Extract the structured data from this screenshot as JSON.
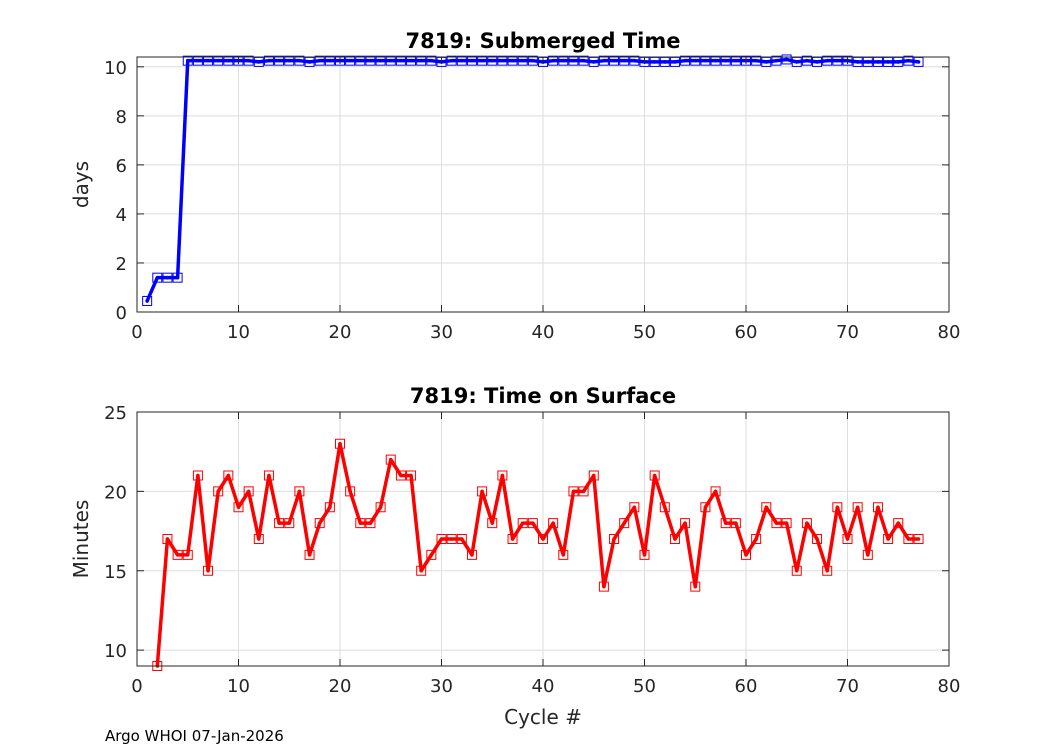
{
  "footer": "Argo WHOI 07-Jan-2026",
  "chart_data": [
    {
      "type": "line",
      "title": "7819: Submerged Time",
      "xlabel": "",
      "ylabel": "days",
      "xlim": [
        0,
        80
      ],
      "ylim": [
        0,
        10.4
      ],
      "xticks": [
        0,
        10,
        20,
        30,
        40,
        50,
        60,
        70,
        80
      ],
      "yticks": [
        0,
        2,
        4,
        6,
        8,
        10
      ],
      "grid": true,
      "color": "#0000ff",
      "marker": "square",
      "series": [
        {
          "name": "Submerged Time",
          "x": [
            1,
            2,
            3,
            4,
            5,
            6,
            7,
            8,
            9,
            10,
            11,
            12,
            13,
            14,
            15,
            16,
            17,
            18,
            19,
            20,
            21,
            22,
            23,
            24,
            25,
            26,
            27,
            28,
            29,
            30,
            31,
            32,
            33,
            34,
            35,
            36,
            37,
            38,
            39,
            40,
            41,
            42,
            43,
            44,
            45,
            46,
            47,
            48,
            49,
            50,
            51,
            52,
            53,
            54,
            55,
            56,
            57,
            58,
            59,
            60,
            61,
            62,
            63,
            64,
            65,
            66,
            67,
            68,
            69,
            70,
            71,
            72,
            73,
            74,
            75,
            76,
            77
          ],
          "y": [
            0.45,
            1.4,
            1.4,
            1.4,
            10.25,
            10.25,
            10.25,
            10.25,
            10.25,
            10.25,
            10.25,
            10.2,
            10.25,
            10.25,
            10.25,
            10.25,
            10.2,
            10.25,
            10.25,
            10.25,
            10.25,
            10.25,
            10.25,
            10.25,
            10.25,
            10.25,
            10.25,
            10.25,
            10.25,
            10.2,
            10.25,
            10.25,
            10.25,
            10.25,
            10.25,
            10.25,
            10.25,
            10.25,
            10.25,
            10.2,
            10.25,
            10.25,
            10.25,
            10.25,
            10.2,
            10.25,
            10.25,
            10.25,
            10.25,
            10.2,
            10.2,
            10.2,
            10.2,
            10.25,
            10.25,
            10.25,
            10.25,
            10.25,
            10.25,
            10.25,
            10.25,
            10.2,
            10.25,
            10.3,
            10.2,
            10.25,
            10.2,
            10.25,
            10.25,
            10.25,
            10.2,
            10.2,
            10.2,
            10.2,
            10.2,
            10.25,
            10.2
          ]
        }
      ]
    },
    {
      "type": "line",
      "title": "7819: Time on Surface",
      "xlabel": "Cycle #",
      "ylabel": "Minutes",
      "xlim": [
        0,
        80
      ],
      "ylim": [
        9,
        25
      ],
      "xticks": [
        0,
        10,
        20,
        30,
        40,
        50,
        60,
        70,
        80
      ],
      "yticks": [
        10,
        15,
        20,
        25
      ],
      "grid": true,
      "color": "#ff0000",
      "marker": "square",
      "series": [
        {
          "name": "Time on Surface",
          "x": [
            2,
            3,
            4,
            5,
            6,
            7,
            8,
            9,
            10,
            11,
            12,
            13,
            14,
            15,
            16,
            17,
            18,
            19,
            20,
            21,
            22,
            23,
            24,
            25,
            26,
            27,
            28,
            29,
            30,
            31,
            32,
            33,
            34,
            35,
            36,
            37,
            38,
            39,
            40,
            41,
            42,
            43,
            44,
            45,
            46,
            47,
            48,
            49,
            50,
            51,
            52,
            53,
            54,
            55,
            56,
            57,
            58,
            59,
            60,
            61,
            62,
            63,
            64,
            65,
            66,
            67,
            68,
            69,
            70,
            71,
            72,
            73,
            74,
            75,
            76,
            77
          ],
          "y": [
            9,
            17,
            16,
            16,
            21,
            15,
            20,
            21,
            19,
            20,
            17,
            21,
            18,
            18,
            20,
            16,
            18,
            19,
            23,
            20,
            18,
            18,
            19,
            22,
            21,
            21,
            15,
            16,
            17,
            17,
            17,
            16,
            20,
            18,
            21,
            17,
            18,
            18,
            17,
            18,
            16,
            20,
            20,
            21,
            14,
            17,
            18,
            19,
            16,
            21,
            19,
            17,
            18,
            14,
            19,
            20,
            18,
            18,
            16,
            17,
            19,
            18,
            18,
            15,
            18,
            17,
            15,
            19,
            17,
            19,
            16,
            19,
            17,
            18,
            17,
            17
          ]
        }
      ]
    }
  ]
}
